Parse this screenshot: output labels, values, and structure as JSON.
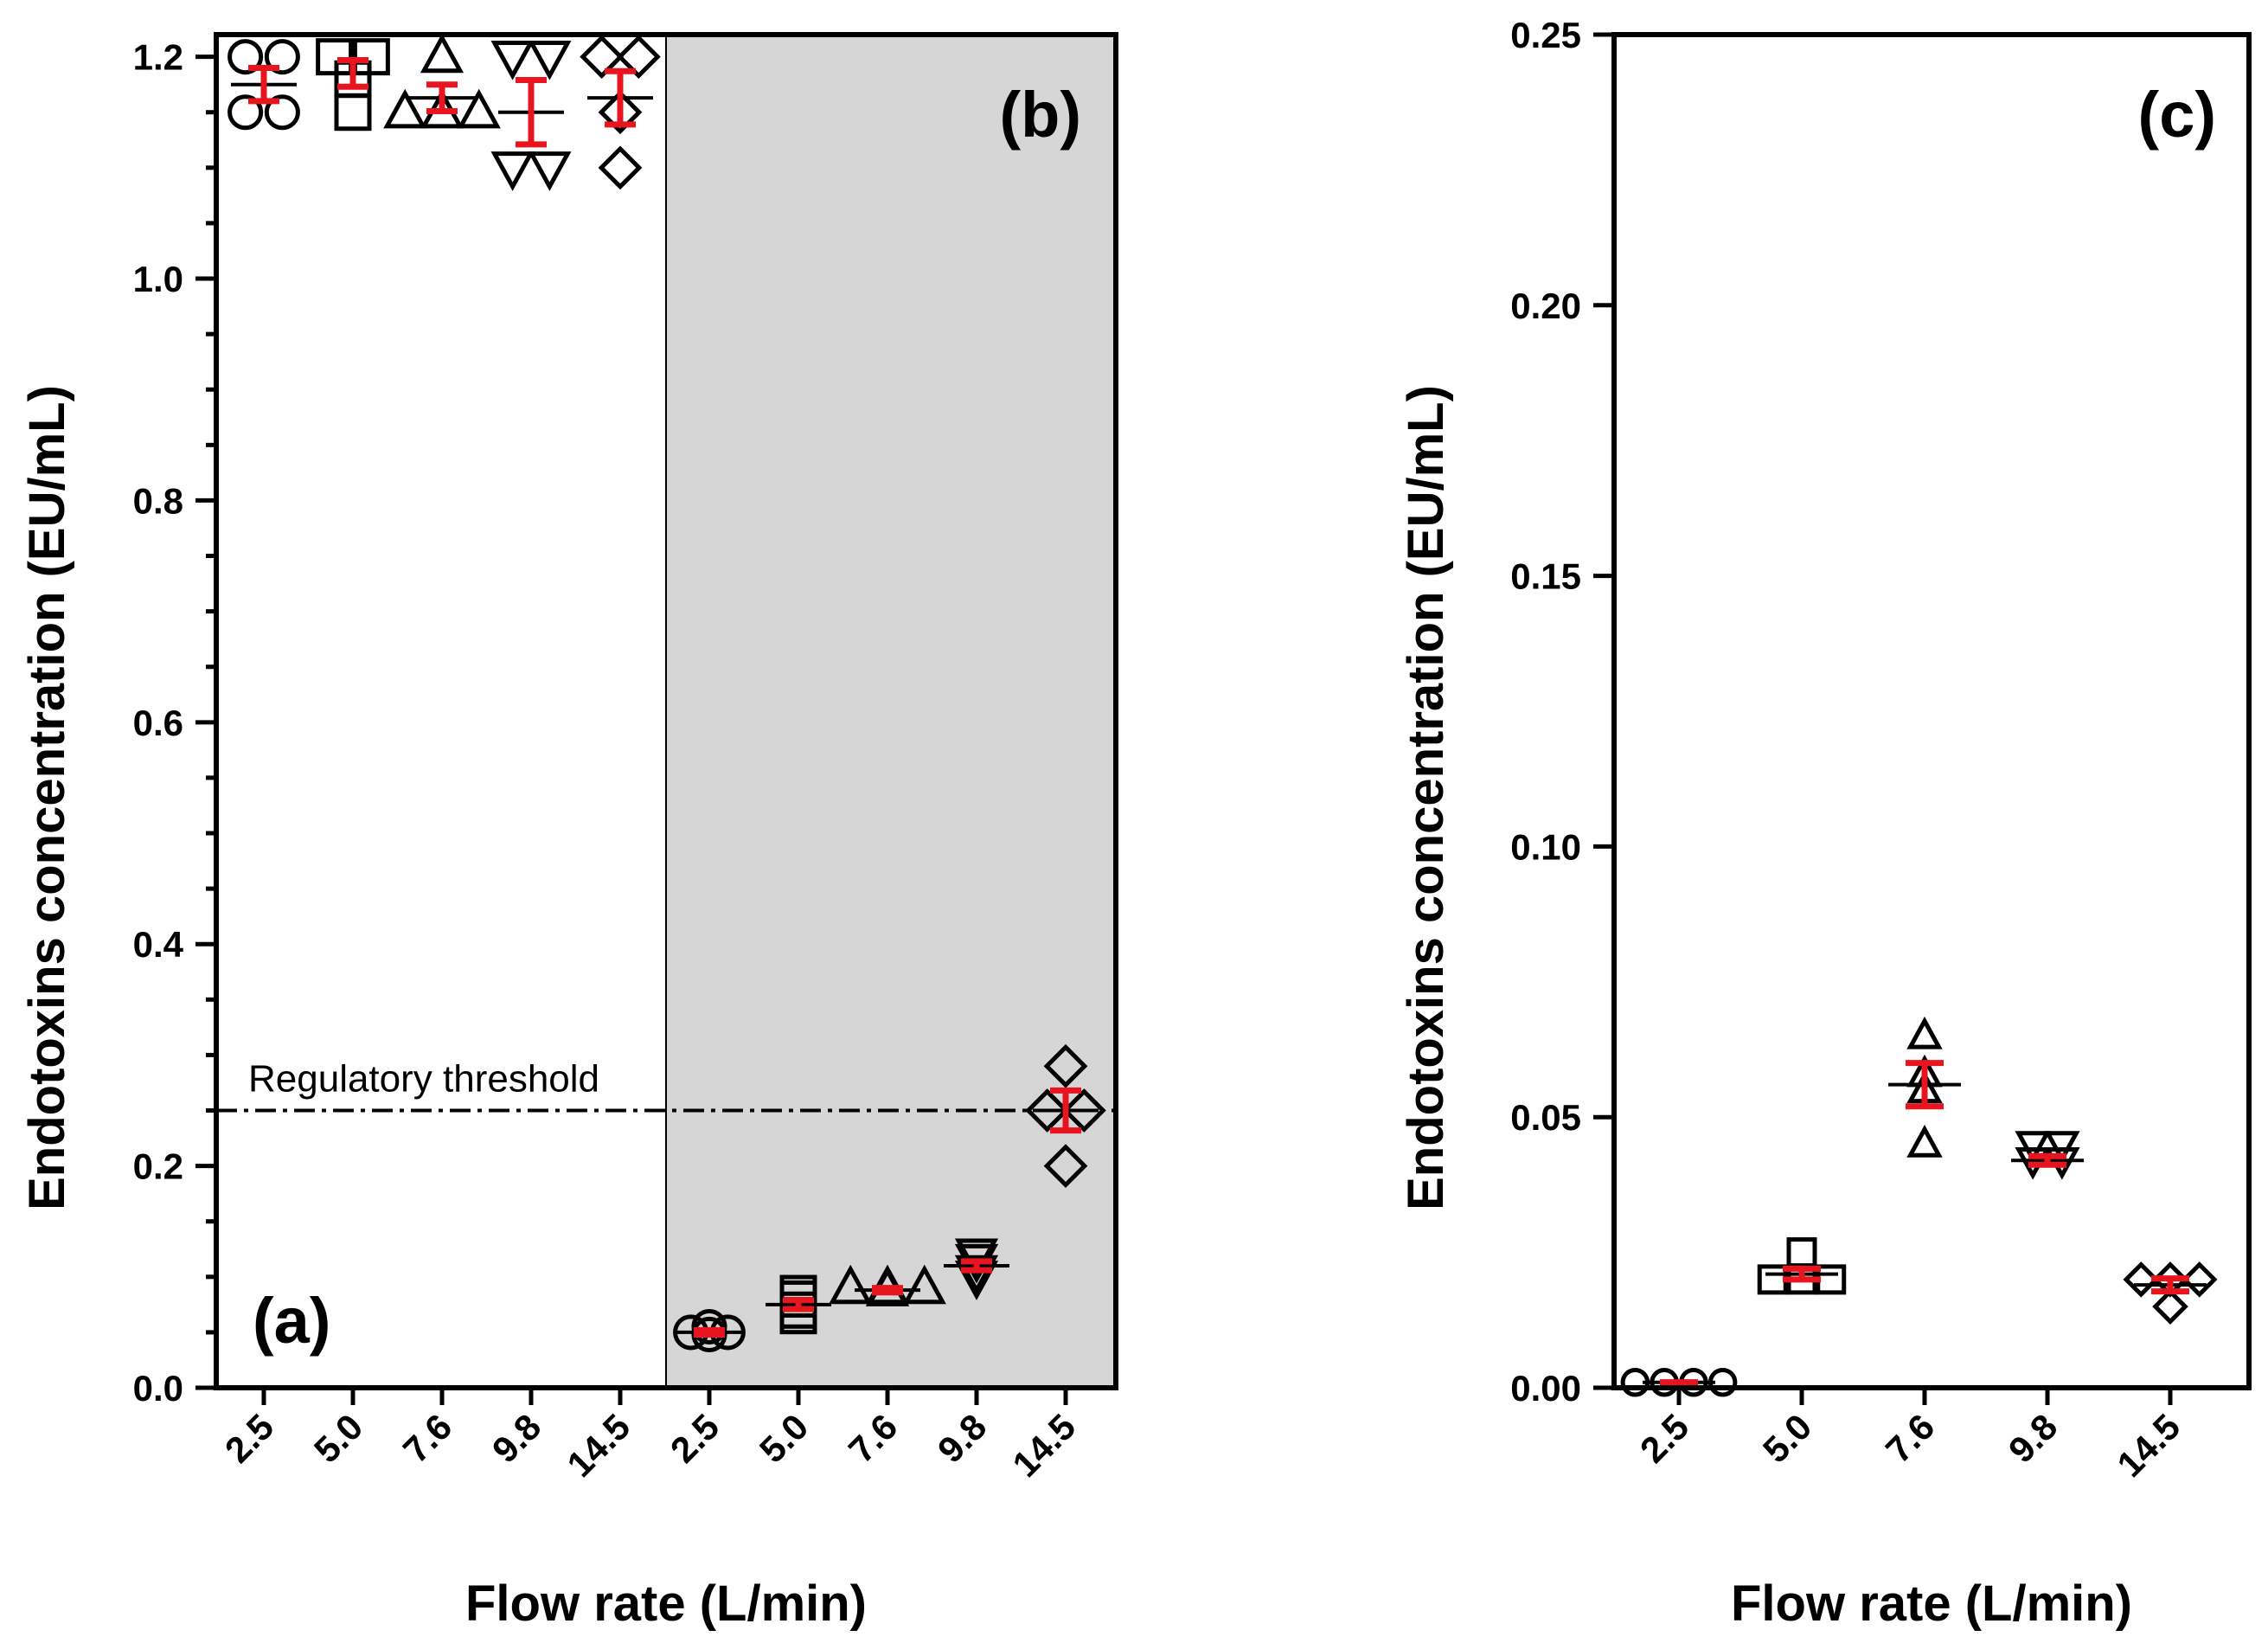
{
  "chart_data": [
    {
      "type": "scatter",
      "panel": "a-b",
      "panels": [
        "(a)",
        "(b)"
      ],
      "ylabel": "Endotoxins concentration (EU/mL)",
      "xlabel": "Flow rate (L/min)",
      "ylim": [
        0,
        1.22
      ],
      "yticks": [
        0.0,
        0.2,
        0.4,
        0.6,
        0.8,
        1.0,
        1.2
      ],
      "ytick_labels": [
        "0.0",
        "0.2",
        "0.4",
        "0.6",
        "0.8",
        "1.0",
        "1.2"
      ],
      "yminor_step": 0.05,
      "categories": [
        "2.5",
        "5.0",
        "7.6",
        "9.8",
        "14.5",
        "2.5",
        "5.0",
        "7.6",
        "9.8",
        "14.5"
      ],
      "shaded_from_category": 5,
      "annotation": {
        "text": "Regulatory threshold",
        "y": 0.25
      },
      "groups": [
        {
          "cat": 0,
          "marker": "circle",
          "points": [
            1.2,
            1.2,
            1.15,
            1.15
          ],
          "mean": 1.175,
          "err": 0.015
        },
        {
          "cat": 1,
          "marker": "square",
          "points": [
            1.2,
            1.2,
            1.18,
            1.15
          ],
          "mean": 1.185,
          "err": 0.012
        },
        {
          "cat": 2,
          "marker": "triangle-up",
          "points": [
            1.2,
            1.15,
            1.15,
            1.15
          ],
          "mean": 1.163,
          "err": 0.012
        },
        {
          "cat": 3,
          "marker": "triangle-down",
          "points": [
            1.2,
            1.2,
            1.1,
            1.1
          ],
          "mean": 1.15,
          "err": 0.029
        },
        {
          "cat": 4,
          "marker": "diamond",
          "points": [
            1.2,
            1.2,
            1.15,
            1.1
          ],
          "mean": 1.163,
          "err": 0.024
        },
        {
          "cat": 5,
          "marker": "circle",
          "points": [
            0.05,
            0.055,
            0.048,
            0.05
          ],
          "mean": 0.05,
          "err": 0.002
        },
        {
          "cat": 6,
          "marker": "square",
          "points": [
            0.07,
            0.085,
            0.08,
            0.065
          ],
          "mean": 0.075,
          "err": 0.004
        },
        {
          "cat": 7,
          "marker": "triangle-up",
          "points": [
            0.09,
            0.09,
            0.088,
            0.09
          ],
          "mean": 0.088,
          "err": 0.002
        },
        {
          "cat": 8,
          "marker": "triangle-down",
          "points": [
            0.12,
            0.115,
            0.105,
            0.1
          ],
          "mean": 0.11,
          "err": 0.004
        },
        {
          "cat": 9,
          "marker": "diamond",
          "points": [
            0.29,
            0.25,
            0.25,
            0.2
          ],
          "mean": 0.25,
          "err": 0.018
        }
      ]
    },
    {
      "type": "scatter",
      "panel": "c",
      "panels": [
        "(c)"
      ],
      "ylabel": "Endotoxins concentration (EU/mL)",
      "xlabel": "Flow rate (L/min)",
      "ylim": [
        0,
        0.25
      ],
      "yticks": [
        0.0,
        0.05,
        0.1,
        0.15,
        0.2,
        0.25
      ],
      "ytick_labels": [
        "0.00",
        "0.05",
        "0.10",
        "0.15",
        "0.20",
        "0.25"
      ],
      "categories": [
        "2.5",
        "5.0",
        "7.6",
        "9.8",
        "14.5"
      ],
      "groups": [
        {
          "cat": 0,
          "marker": "circle",
          "points": [
            0.001,
            0.001,
            0.001,
            0.001
          ],
          "mean": 0.001,
          "err": 0.0
        },
        {
          "cat": 1,
          "marker": "square",
          "points": [
            0.02,
            0.02,
            0.02,
            0.025
          ],
          "mean": 0.021,
          "err": 0.001
        },
        {
          "cat": 2,
          "marker": "triangle-up",
          "points": [
            0.065,
            0.058,
            0.055,
            0.045
          ],
          "mean": 0.056,
          "err": 0.004
        },
        {
          "cat": 3,
          "marker": "triangle-down",
          "points": [
            0.045,
            0.045,
            0.042,
            0.042
          ],
          "mean": 0.042,
          "err": 0.0008
        },
        {
          "cat": 4,
          "marker": "diamond",
          "points": [
            0.02,
            0.02,
            0.02,
            0.015
          ],
          "mean": 0.019,
          "err": 0.0012
        }
      ]
    }
  ]
}
